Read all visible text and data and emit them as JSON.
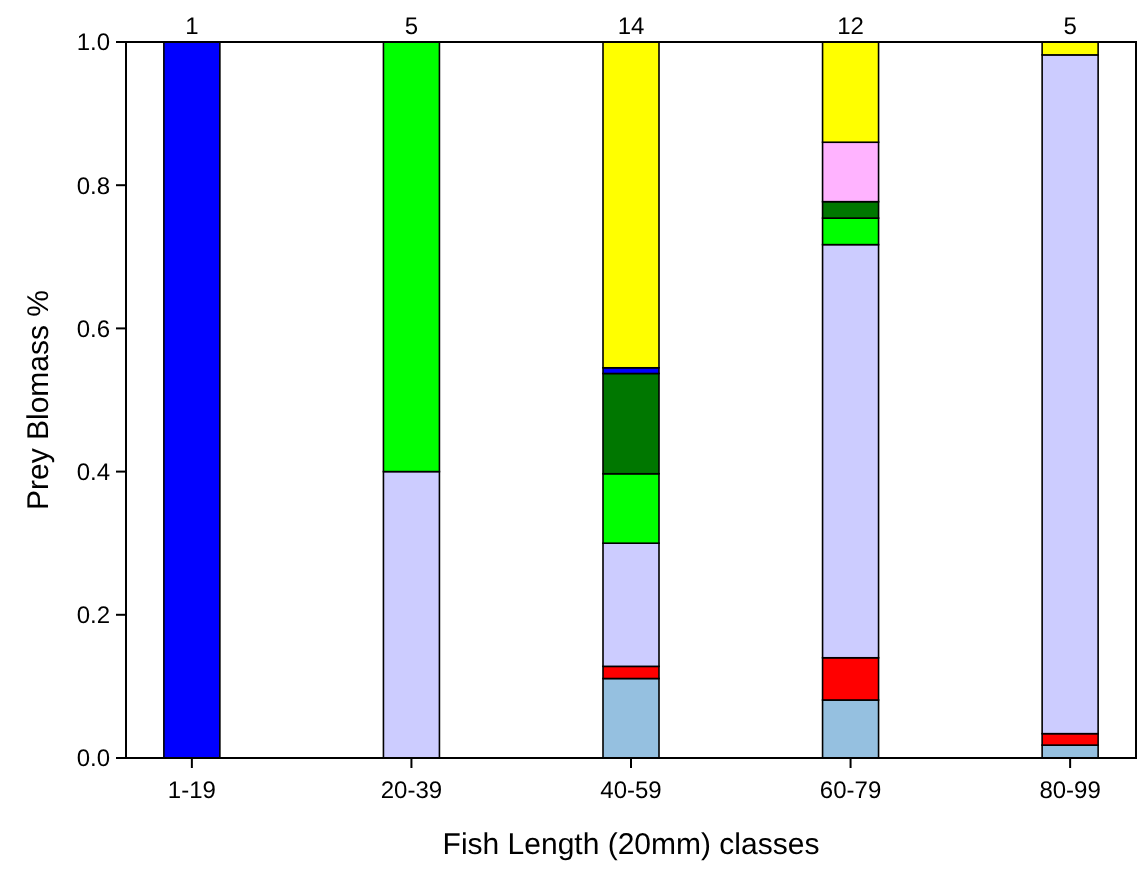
{
  "chart_data": {
    "type": "bar",
    "stacked": true,
    "xlabel": "Fish Length (20mm) classes",
    "ylabel": "Prey Blomass %",
    "categories": [
      "1-19",
      "20-39",
      "40-59",
      "60-79",
      "80-99"
    ],
    "ylim": [
      0,
      1
    ],
    "yticks": [
      {
        "value": 0,
        "label": "0.0"
      },
      {
        "value": 0.2,
        "label": "0.2"
      },
      {
        "value": 0.4,
        "label": "0.4"
      },
      {
        "value": 0.6,
        "label": "0.6"
      },
      {
        "value": 0.8,
        "label": "0.8"
      },
      {
        "value": 1,
        "label": "1.0"
      }
    ],
    "series": [
      {
        "color": "#95c0e0",
        "values": [
          null,
          null,
          0.111,
          0.081,
          0.018
        ]
      },
      {
        "color": "#ff0000",
        "values": [
          null,
          null,
          0.017,
          0.059,
          0.016
        ]
      },
      {
        "color": "#ccccff",
        "values": [
          null,
          0.4,
          0.172,
          0.577,
          0.948
        ]
      },
      {
        "color": "#00ff00",
        "values": [
          null,
          0.6,
          0.097,
          0.037,
          null
        ]
      },
      {
        "color": "#007700",
        "values": [
          null,
          null,
          0.14,
          0.023,
          null
        ]
      },
      {
        "color": "#0000ff",
        "values": [
          1,
          null,
          0.008,
          null,
          null
        ]
      },
      {
        "color": "#ffb3ff",
        "values": [
          null,
          null,
          null,
          0.083,
          null
        ]
      },
      {
        "color": "#ffff00",
        "values": [
          null,
          null,
          0.455,
          0.14,
          0.018
        ]
      }
    ],
    "annotations": [
      {
        "text": "1",
        "x": "1-19",
        "y": 1
      },
      {
        "text": "5",
        "x": "20-39",
        "y": 1
      },
      {
        "text": "14",
        "x": "40-59",
        "y": 1
      },
      {
        "text": "12",
        "x": "60-79",
        "y": 1
      },
      {
        "text": "5",
        "x": "80-99",
        "y": 1
      }
    ]
  }
}
